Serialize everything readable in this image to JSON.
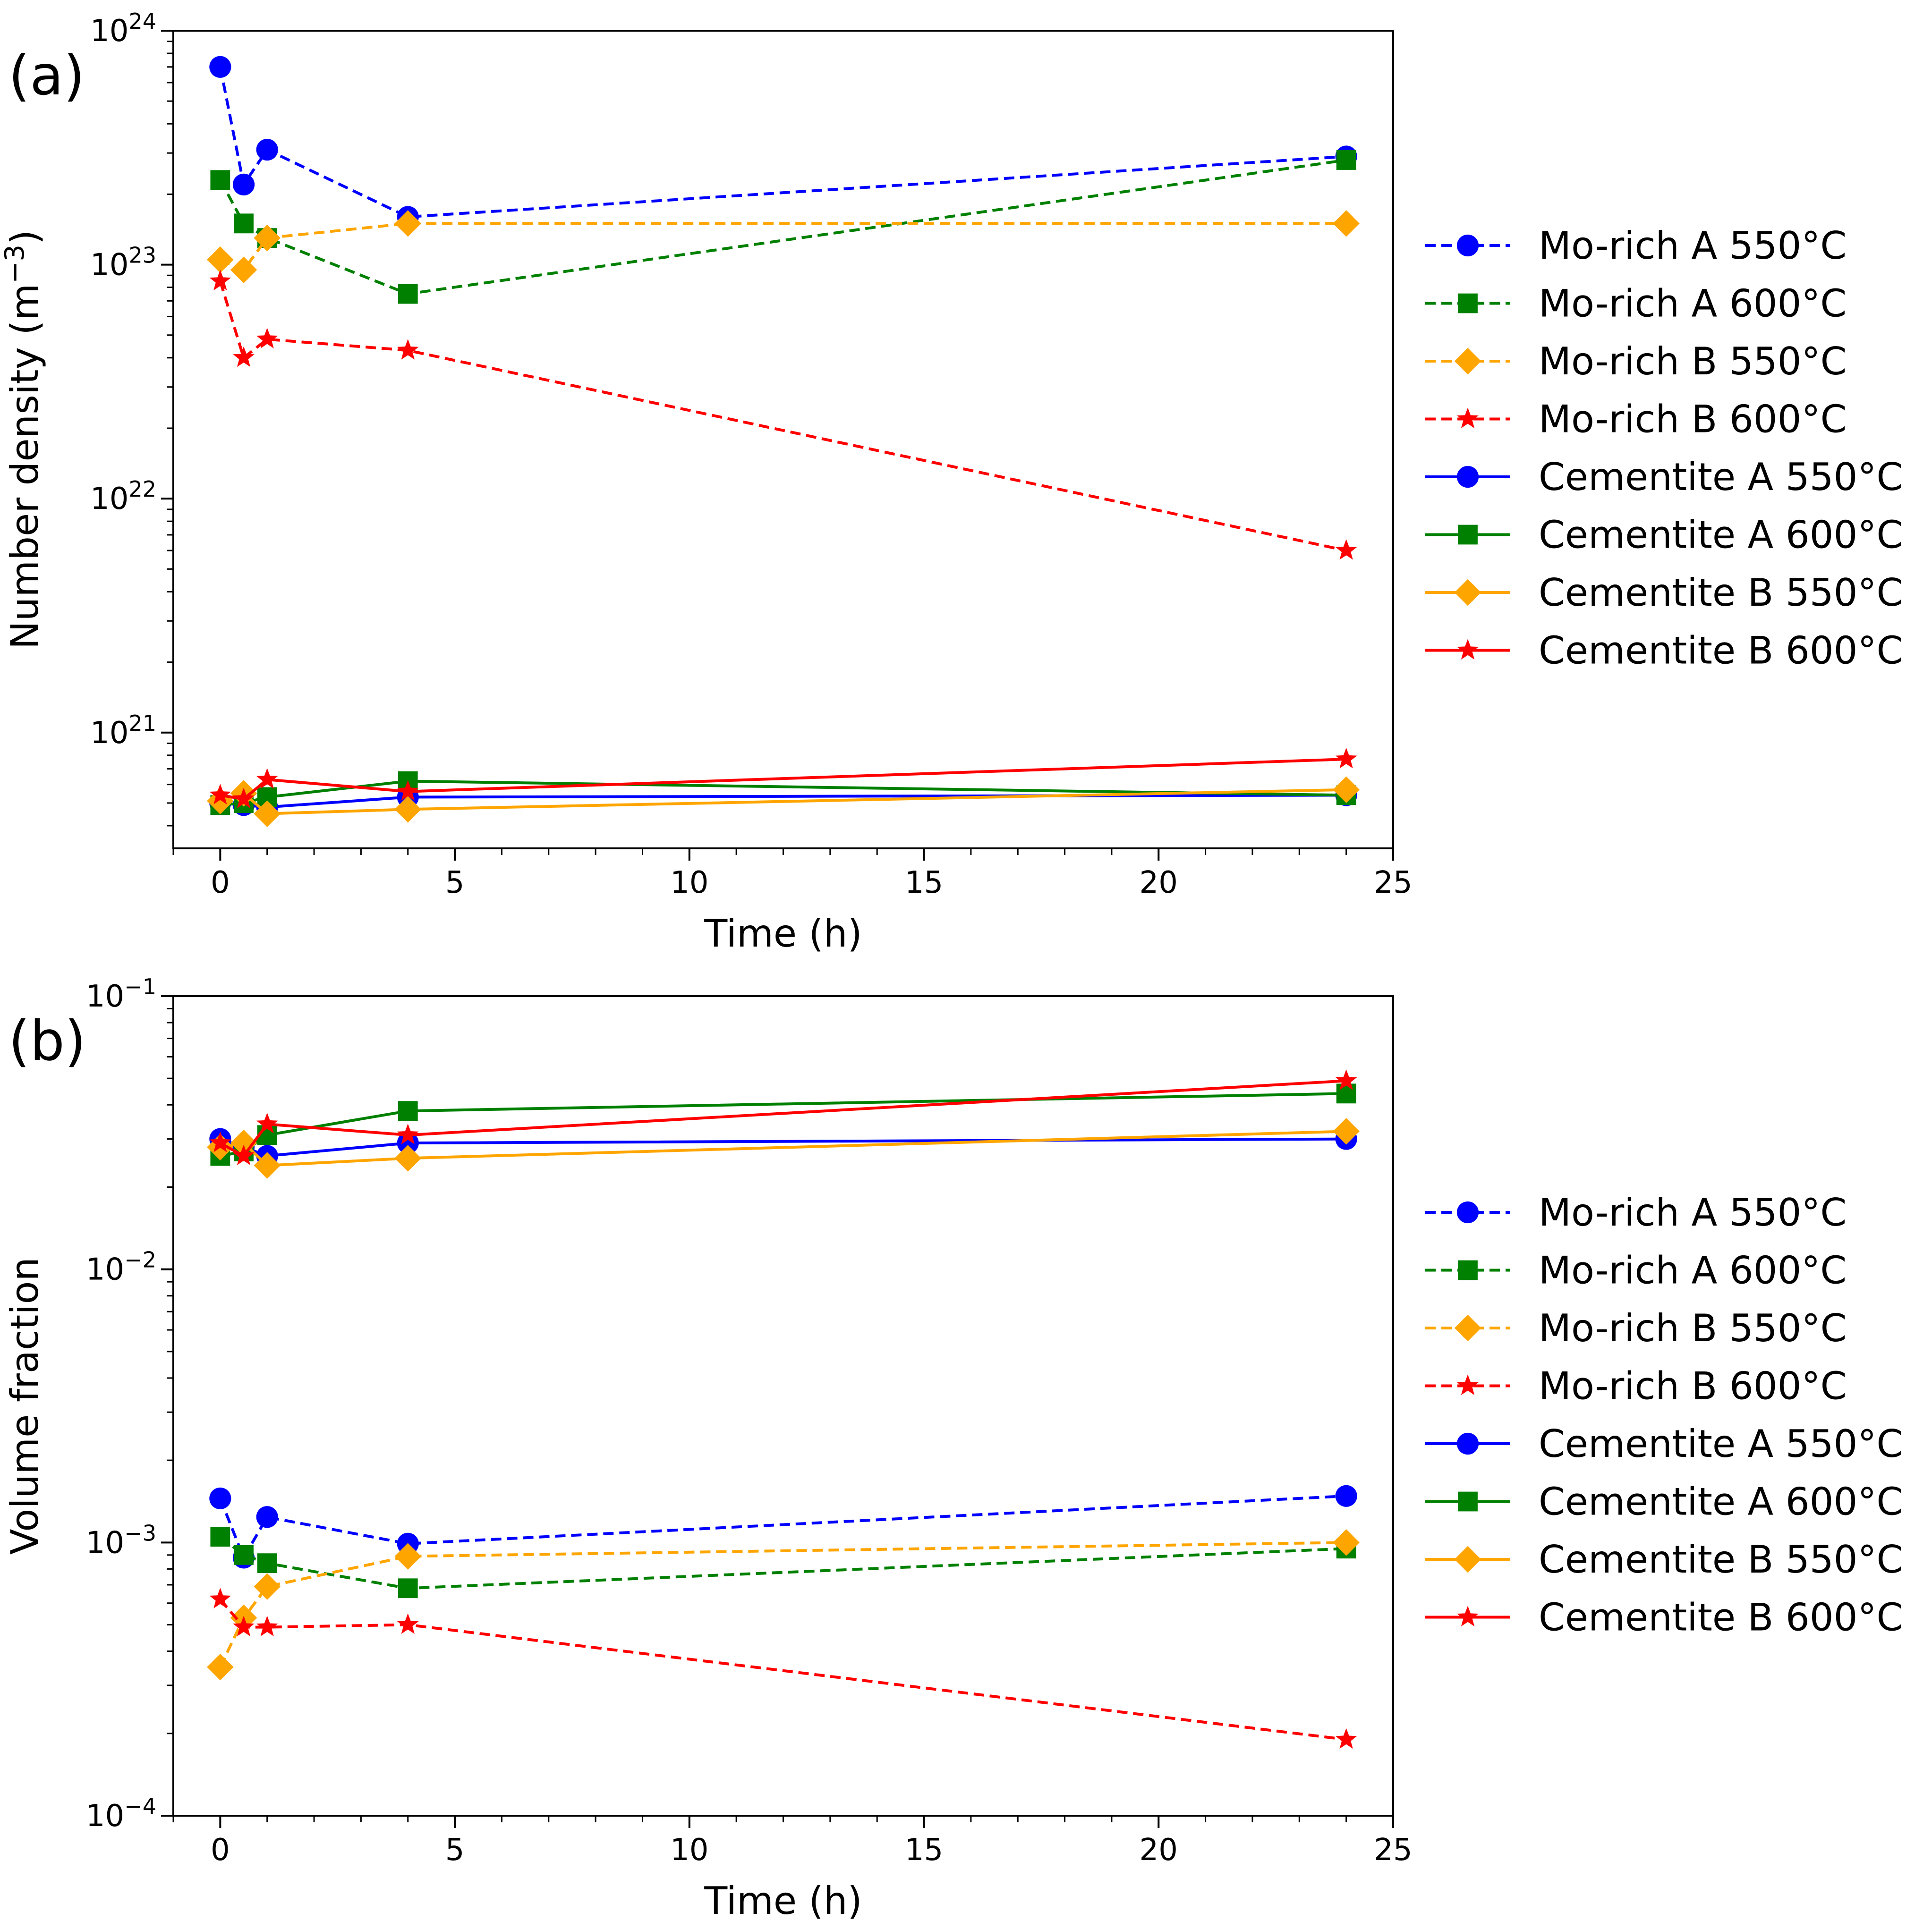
{
  "chart_data": [
    {
      "panel_label": "(a)",
      "type": "line",
      "y_scale": "log",
      "xlabel": "Time (h)",
      "ylabel_main": "Number density (m",
      "ylabel_sup": "−3",
      "ylabel_close": ")",
      "xlim": [
        -1,
        25
      ],
      "ylim": [
        3.2e+20,
        1e+24
      ],
      "xticks": [
        0,
        5,
        10,
        15,
        20,
        25
      ],
      "xtick_labels": [
        "0",
        "5",
        "10",
        "15",
        "20",
        "25"
      ],
      "yticks": [
        {
          "value": 1e+21,
          "base": "10",
          "exp": "21"
        },
        {
          "value": 1e+22,
          "base": "10",
          "exp": "22"
        },
        {
          "value": 1e+23,
          "base": "10",
          "exp": "23"
        },
        {
          "value": 1e+24,
          "base": "10",
          "exp": "24"
        }
      ],
      "legend_position": "outside-right",
      "series": [
        {
          "name": "Mo-rich A 550°C",
          "color": "#0000ff",
          "linestyle": "dashed",
          "marker": "circle",
          "x": [
            0,
            0.5,
            1,
            4,
            24
          ],
          "y": [
            7e+23,
            2.2e+23,
            3.1e+23,
            1.6e+23,
            2.9e+23
          ]
        },
        {
          "name": "Mo-rich A 600°C",
          "color": "#008000",
          "linestyle": "dashed",
          "marker": "square",
          "x": [
            0,
            0.5,
            1,
            4,
            24
          ],
          "y": [
            2.3e+23,
            1.5e+23,
            1.3e+23,
            7.5e+22,
            2.8e+23
          ]
        },
        {
          "name": "Mo-rich B 550°C",
          "color": "#ffa500",
          "linestyle": "dashed",
          "marker": "diamond",
          "x": [
            0,
            0.5,
            1,
            4,
            24
          ],
          "y": [
            1.05e+23,
            9.5e+22,
            1.3e+23,
            1.5e+23,
            1.5e+23
          ]
        },
        {
          "name": "Mo-rich B 600°C",
          "color": "#ff0000",
          "linestyle": "dashed",
          "marker": "star",
          "x": [
            0,
            0.5,
            1,
            4,
            24
          ],
          "y": [
            8.5e+22,
            4e+22,
            4.8e+22,
            4.3e+22,
            6e+21
          ]
        },
        {
          "name": "Cementite A 550°C",
          "color": "#0000ff",
          "linestyle": "solid",
          "marker": "circle",
          "x": [
            0,
            0.5,
            1,
            4,
            24
          ],
          "y": [
            5e+20,
            4.9e+20,
            4.8e+20,
            5.3e+20,
            5.4e+20
          ]
        },
        {
          "name": "Cementite A 600°C",
          "color": "#008000",
          "linestyle": "solid",
          "marker": "square",
          "x": [
            0,
            0.5,
            1,
            4,
            24
          ],
          "y": [
            4.9e+20,
            5e+20,
            5.3e+20,
            6.2e+20,
            5.4e+20
          ]
        },
        {
          "name": "Cementite B 550°C",
          "color": "#ffa500",
          "linestyle": "solid",
          "marker": "diamond",
          "x": [
            0,
            0.5,
            1,
            4,
            24
          ],
          "y": [
            5.1e+20,
            5.5e+20,
            4.5e+20,
            4.7e+20,
            5.7e+20
          ]
        },
        {
          "name": "Cementite B 600°C",
          "color": "#ff0000",
          "linestyle": "solid",
          "marker": "star",
          "x": [
            0,
            0.5,
            1,
            4,
            24
          ],
          "y": [
            5.4e+20,
            5.2e+20,
            6.3e+20,
            5.6e+20,
            7.7e+20
          ]
        }
      ]
    },
    {
      "panel_label": "(b)",
      "type": "line",
      "y_scale": "log",
      "xlabel": "Time (h)",
      "ylabel_main": "Volume fraction",
      "ylabel_sup": "",
      "ylabel_close": "",
      "xlim": [
        -1,
        25
      ],
      "ylim": [
        0.0001,
        0.1
      ],
      "xticks": [
        0,
        5,
        10,
        15,
        20,
        25
      ],
      "xtick_labels": [
        "0",
        "5",
        "10",
        "15",
        "20",
        "25"
      ],
      "yticks": [
        {
          "value": 0.0001,
          "base": "10",
          "exp": "−4"
        },
        {
          "value": 0.001,
          "base": "10",
          "exp": "−3"
        },
        {
          "value": 0.01,
          "base": "10",
          "exp": "−2"
        },
        {
          "value": 0.1,
          "base": "10",
          "exp": "−1"
        }
      ],
      "legend_position": "outside-right",
      "series": [
        {
          "name": "Mo-rich A 550°C",
          "color": "#0000ff",
          "linestyle": "dashed",
          "marker": "circle",
          "x": [
            0,
            0.5,
            1,
            4,
            24
          ],
          "y": [
            0.00145,
            0.00088,
            0.00124,
            0.00099,
            0.00148
          ]
        },
        {
          "name": "Mo-rich A 600°C",
          "color": "#008000",
          "linestyle": "dashed",
          "marker": "square",
          "x": [
            0,
            0.5,
            1,
            4,
            24
          ],
          "y": [
            0.00105,
            0.0009,
            0.00084,
            0.00068,
            0.00095
          ]
        },
        {
          "name": "Mo-rich B 550°C",
          "color": "#ffa500",
          "linestyle": "dashed",
          "marker": "diamond",
          "x": [
            0,
            0.5,
            1,
            4,
            24
          ],
          "y": [
            0.00035,
            0.00053,
            0.00069,
            0.00089,
            0.001
          ]
        },
        {
          "name": "Mo-rich B 600°C",
          "color": "#ff0000",
          "linestyle": "dashed",
          "marker": "star",
          "x": [
            0,
            0.5,
            1,
            4,
            24
          ],
          "y": [
            0.00062,
            0.00049,
            0.00049,
            0.0005,
            0.00019
          ]
        },
        {
          "name": "Cementite A 550°C",
          "color": "#0000ff",
          "linestyle": "solid",
          "marker": "circle",
          "x": [
            0,
            0.5,
            1,
            4,
            24
          ],
          "y": [
            0.03,
            0.028,
            0.026,
            0.029,
            0.03
          ]
        },
        {
          "name": "Cementite A 600°C",
          "color": "#008000",
          "linestyle": "solid",
          "marker": "square",
          "x": [
            0,
            0.5,
            1,
            4,
            24
          ],
          "y": [
            0.026,
            0.027,
            0.031,
            0.038,
            0.044
          ]
        },
        {
          "name": "Cementite B 550°C",
          "color": "#ffa500",
          "linestyle": "solid",
          "marker": "diamond",
          "x": [
            0,
            0.5,
            1,
            4,
            24
          ],
          "y": [
            0.028,
            0.029,
            0.024,
            0.0255,
            0.032
          ]
        },
        {
          "name": "Cementite B 600°C",
          "color": "#ff0000",
          "linestyle": "solid",
          "marker": "star",
          "x": [
            0,
            0.5,
            1,
            4,
            24
          ],
          "y": [
            0.029,
            0.026,
            0.034,
            0.031,
            0.049
          ]
        }
      ]
    }
  ]
}
